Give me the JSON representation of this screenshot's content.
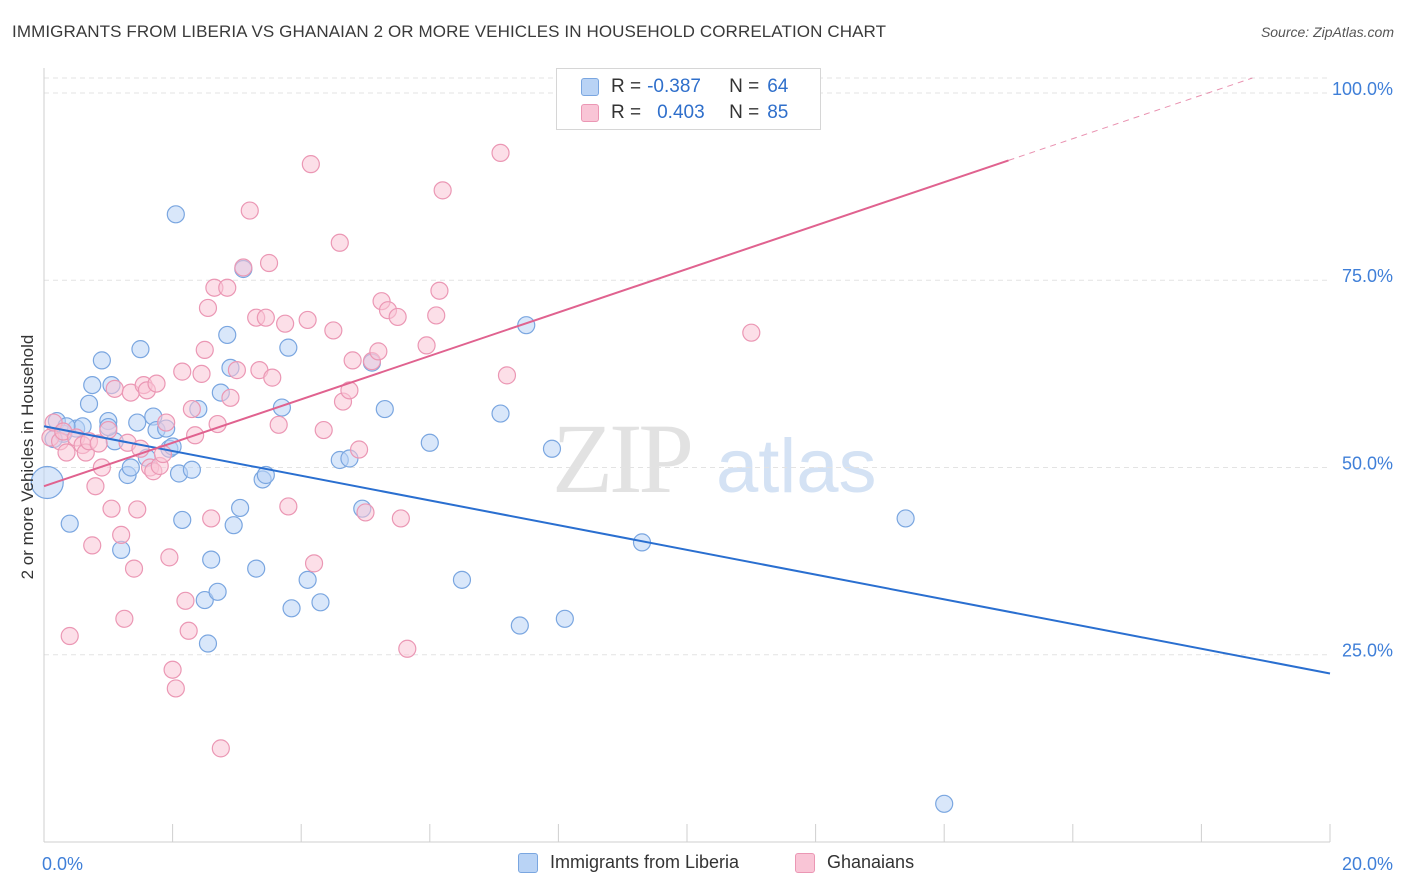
{
  "header": {
    "title": "IMMIGRANTS FROM LIBERIA VS GHANAIAN 2 OR MORE VEHICLES IN HOUSEHOLD CORRELATION CHART",
    "source": "Source: ZipAtlas.com"
  },
  "legend": {
    "r_label": "R =",
    "n_label": "N =",
    "series": [
      {
        "r": "-0.387",
        "n": "64"
      },
      {
        "r": "0.403",
        "n": "85"
      }
    ]
  },
  "watermark": {
    "zip": "ZIP",
    "atlas": "atlas"
  },
  "colors": {
    "blue_fill": "#b9d3f5",
    "blue_stroke": "#7aa6e0",
    "blue_line": "#2a6fd0",
    "pink_fill": "#f9c5d6",
    "pink_stroke": "#eb97b4",
    "pink_line": "#e0628f",
    "axis_text": "#3f7fd8",
    "grid": "#e3e3e3"
  },
  "chart_data": {
    "type": "scatter",
    "xlabel": "",
    "ylabel": "2 or more Vehicles in Household",
    "xlim": [
      0,
      20
    ],
    "ylim": [
      0,
      102
    ],
    "x_tick_labels": [
      "0.0%",
      "20.0%"
    ],
    "y_ticks": [
      25,
      50,
      75,
      100
    ],
    "y_tick_labels": [
      "25.0%",
      "50.0%",
      "75.0%",
      "100.0%"
    ],
    "grid": true,
    "legend_position": "bottom-center",
    "series": [
      {
        "name": "Immigrants from Liberia",
        "color": "#7aa6e0",
        "trend": {
          "x0": 0,
          "y0": 55.5,
          "x1": 20,
          "y1": 22.5,
          "dashed_from": null
        },
        "points": [
          [
            0.05,
            48.0
          ],
          [
            0.2,
            56.2
          ],
          [
            0.4,
            42.5
          ],
          [
            0.3,
            54.5
          ],
          [
            0.5,
            55.2
          ],
          [
            0.6,
            55.5
          ],
          [
            0.7,
            58.5
          ],
          [
            0.75,
            61.0
          ],
          [
            0.9,
            64.3
          ],
          [
            1.0,
            56.2
          ],
          [
            1.05,
            61.0
          ],
          [
            1.1,
            53.5
          ],
          [
            1.2,
            39.0
          ],
          [
            1.3,
            49.0
          ],
          [
            1.35,
            50.0
          ],
          [
            1.45,
            56.0
          ],
          [
            1.5,
            65.8
          ],
          [
            1.6,
            51.3
          ],
          [
            1.7,
            56.8
          ],
          [
            1.75,
            55.0
          ],
          [
            1.9,
            55.2
          ],
          [
            1.95,
            52.5
          ],
          [
            2.05,
            83.8
          ],
          [
            2.1,
            49.2
          ],
          [
            2.15,
            43.0
          ],
          [
            2.3,
            49.7
          ],
          [
            2.4,
            57.8
          ],
          [
            2.5,
            32.3
          ],
          [
            2.55,
            26.5
          ],
          [
            2.6,
            37.7
          ],
          [
            2.7,
            33.4
          ],
          [
            2.75,
            60.0
          ],
          [
            2.85,
            67.7
          ],
          [
            2.9,
            63.3
          ],
          [
            2.95,
            42.3
          ],
          [
            3.05,
            44.6
          ],
          [
            3.1,
            76.5
          ],
          [
            3.3,
            36.5
          ],
          [
            3.4,
            48.4
          ],
          [
            3.45,
            49.0
          ],
          [
            3.7,
            58.0
          ],
          [
            3.8,
            66.0
          ],
          [
            3.85,
            31.2
          ],
          [
            4.1,
            35.0
          ],
          [
            4.3,
            32.0
          ],
          [
            4.6,
            51.0
          ],
          [
            4.75,
            51.2
          ],
          [
            4.95,
            44.5
          ],
          [
            5.1,
            64.0
          ],
          [
            5.3,
            57.8
          ],
          [
            6.0,
            53.3
          ],
          [
            6.5,
            35.0
          ],
          [
            7.1,
            57.2
          ],
          [
            7.4,
            28.9
          ],
          [
            7.5,
            69.0
          ],
          [
            7.9,
            52.5
          ],
          [
            8.1,
            29.8
          ],
          [
            9.3,
            40.0
          ],
          [
            13.4,
            43.2
          ],
          [
            14.0,
            5.1
          ],
          [
            0.15,
            53.8
          ],
          [
            0.35,
            55.5
          ],
          [
            1.0,
            55.4
          ],
          [
            2.0,
            52.8
          ]
        ]
      },
      {
        "name": "Ghanaians",
        "color": "#eb97b4",
        "trend": {
          "x0": 0,
          "y0": 47.5,
          "x1": 20,
          "y1": 105.5,
          "dashed_from": 15.0
        },
        "points": [
          [
            0.1,
            54.0
          ],
          [
            0.15,
            56.0
          ],
          [
            0.25,
            53.5
          ],
          [
            0.3,
            54.8
          ],
          [
            0.35,
            52.0
          ],
          [
            0.4,
            27.5
          ],
          [
            0.5,
            54.0
          ],
          [
            0.6,
            53.0
          ],
          [
            0.65,
            52.0
          ],
          [
            0.7,
            53.5
          ],
          [
            0.75,
            39.6
          ],
          [
            0.8,
            47.5
          ],
          [
            0.85,
            53.2
          ],
          [
            0.9,
            50.0
          ],
          [
            1.0,
            55.0
          ],
          [
            1.05,
            44.5
          ],
          [
            1.1,
            60.5
          ],
          [
            1.2,
            41.0
          ],
          [
            1.25,
            29.8
          ],
          [
            1.3,
            53.3
          ],
          [
            1.35,
            60.0
          ],
          [
            1.4,
            36.5
          ],
          [
            1.45,
            44.4
          ],
          [
            1.5,
            52.5
          ],
          [
            1.55,
            61.0
          ],
          [
            1.6,
            60.3
          ],
          [
            1.65,
            50.0
          ],
          [
            1.7,
            49.5
          ],
          [
            1.75,
            61.2
          ],
          [
            1.8,
            50.2
          ],
          [
            1.85,
            51.8
          ],
          [
            1.9,
            56.0
          ],
          [
            1.95,
            38.0
          ],
          [
            2.0,
            23.0
          ],
          [
            2.05,
            20.5
          ],
          [
            2.15,
            62.8
          ],
          [
            2.2,
            32.2
          ],
          [
            2.25,
            28.2
          ],
          [
            2.3,
            57.8
          ],
          [
            2.35,
            54.3
          ],
          [
            2.45,
            62.5
          ],
          [
            2.5,
            65.7
          ],
          [
            2.55,
            71.3
          ],
          [
            2.6,
            43.2
          ],
          [
            2.65,
            74.0
          ],
          [
            2.7,
            55.8
          ],
          [
            2.75,
            12.5
          ],
          [
            2.85,
            74.0
          ],
          [
            2.9,
            59.3
          ],
          [
            3.0,
            63.0
          ],
          [
            3.1,
            76.7
          ],
          [
            3.2,
            84.3
          ],
          [
            3.3,
            70.0
          ],
          [
            3.35,
            63.0
          ],
          [
            3.45,
            70.0
          ],
          [
            3.5,
            77.3
          ],
          [
            3.55,
            62.0
          ],
          [
            3.65,
            55.7
          ],
          [
            3.75,
            69.2
          ],
          [
            3.8,
            44.8
          ],
          [
            4.1,
            69.7
          ],
          [
            4.15,
            90.5
          ],
          [
            4.2,
            37.2
          ],
          [
            4.35,
            55.0
          ],
          [
            4.5,
            68.3
          ],
          [
            4.6,
            80.0
          ],
          [
            4.65,
            58.8
          ],
          [
            4.75,
            60.3
          ],
          [
            4.8,
            64.3
          ],
          [
            4.9,
            52.4
          ],
          [
            5.1,
            64.2
          ],
          [
            5.2,
            65.5
          ],
          [
            5.25,
            72.2
          ],
          [
            5.35,
            71.0
          ],
          [
            5.5,
            70.1
          ],
          [
            5.55,
            43.2
          ],
          [
            5.95,
            66.3
          ],
          [
            6.1,
            70.3
          ],
          [
            6.15,
            73.6
          ],
          [
            6.2,
            87.0
          ],
          [
            7.1,
            92.0
          ],
          [
            7.2,
            62.3
          ],
          [
            5.65,
            25.8
          ],
          [
            11.0,
            68.0
          ],
          [
            5.0,
            44.0
          ]
        ]
      }
    ]
  }
}
